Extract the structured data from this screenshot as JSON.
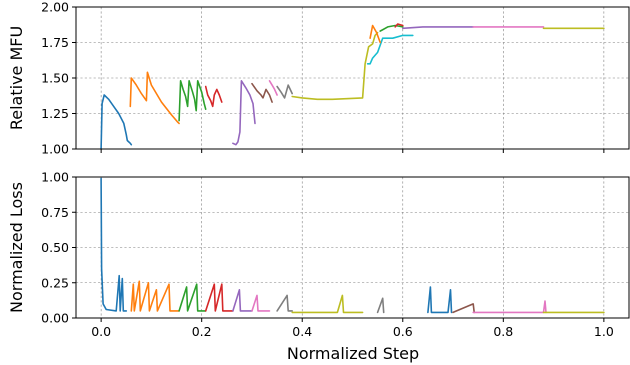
{
  "chart_data": [
    {
      "type": "line",
      "panel": "top",
      "ylabel": "Relative MFU",
      "xlabel": "",
      "xlim": [
        -0.05,
        1.05
      ],
      "ylim": [
        1.0,
        2.0
      ],
      "yticks": [
        "1.00",
        "1.25",
        "1.50",
        "1.75",
        "2.00"
      ],
      "grid": true,
      "series": [
        {
          "color": "#1f77b4",
          "points": [
            [
              0.0,
              1.0
            ],
            [
              0.002,
              1.32
            ],
            [
              0.006,
              1.38
            ],
            [
              0.015,
              1.35
            ],
            [
              0.025,
              1.3
            ],
            [
              0.035,
              1.25
            ],
            [
              0.045,
              1.18
            ],
            [
              0.05,
              1.1
            ],
            [
              0.052,
              1.06
            ],
            [
              0.058,
              1.04
            ],
            [
              0.06,
              1.03
            ]
          ]
        },
        {
          "color": "#ff7f0e",
          "points": [
            [
              0.058,
              1.3
            ],
            [
              0.06,
              1.5
            ],
            [
              0.07,
              1.45
            ],
            [
              0.08,
              1.39
            ],
            [
              0.09,
              1.34
            ],
            [
              0.092,
              1.54
            ],
            [
              0.1,
              1.45
            ],
            [
              0.12,
              1.33
            ],
            [
              0.14,
              1.24
            ],
            [
              0.152,
              1.19
            ],
            [
              0.155,
              1.18
            ]
          ]
        },
        {
          "color": "#2ca02c",
          "points": [
            [
              0.155,
              1.2
            ],
            [
              0.158,
              1.48
            ],
            [
              0.163,
              1.42
            ],
            [
              0.168,
              1.37
            ],
            [
              0.172,
              1.3
            ],
            [
              0.175,
              1.48
            ],
            [
              0.182,
              1.4
            ],
            [
              0.186,
              1.35
            ],
            [
              0.189,
              1.27
            ],
            [
              0.192,
              1.48
            ],
            [
              0.2,
              1.4
            ],
            [
              0.205,
              1.32
            ],
            [
              0.208,
              1.28
            ]
          ]
        },
        {
          "color": "#d62728",
          "points": [
            [
              0.208,
              1.44
            ],
            [
              0.212,
              1.38
            ],
            [
              0.218,
              1.34
            ],
            [
              0.222,
              1.3
            ],
            [
              0.225,
              1.38
            ],
            [
              0.23,
              1.42
            ],
            [
              0.235,
              1.38
            ],
            [
              0.24,
              1.33
            ]
          ]
        },
        {
          "color": "#9467bd",
          "points": [
            [
              0.262,
              1.04
            ],
            [
              0.268,
              1.03
            ],
            [
              0.272,
              1.05
            ],
            [
              0.276,
              1.12
            ],
            [
              0.279,
              1.48
            ],
            [
              0.288,
              1.43
            ],
            [
              0.296,
              1.38
            ],
            [
              0.302,
              1.32
            ],
            [
              0.306,
              1.18
            ]
          ]
        },
        {
          "color": "#8c564b",
          "points": [
            [
              0.3,
              1.46
            ],
            [
              0.31,
              1.41
            ],
            [
              0.318,
              1.38
            ],
            [
              0.322,
              1.36
            ],
            [
              0.328,
              1.42
            ],
            [
              0.335,
              1.38
            ],
            [
              0.34,
              1.33
            ]
          ]
        },
        {
          "color": "#e377c2",
          "points": [
            [
              0.335,
              1.48
            ],
            [
              0.34,
              1.45
            ],
            [
              0.345,
              1.42
            ],
            [
              0.35,
              1.38
            ]
          ]
        },
        {
          "color": "#7f7f7f",
          "points": [
            [
              0.35,
              1.44
            ],
            [
              0.358,
              1.4
            ],
            [
              0.365,
              1.36
            ],
            [
              0.372,
              1.45
            ],
            [
              0.38,
              1.39
            ]
          ]
        },
        {
          "color": "#bcbd22",
          "points": [
            [
              0.38,
              1.37
            ],
            [
              0.4,
              1.36
            ],
            [
              0.43,
              1.35
            ],
            [
              0.46,
              1.35
            ],
            [
              0.52,
              1.36
            ],
            [
              0.525,
              1.6
            ],
            [
              0.532,
              1.72
            ],
            [
              0.54,
              1.74
            ],
            [
              0.545,
              1.8
            ],
            [
              0.55,
              1.82
            ]
          ]
        },
        {
          "color": "#17becf",
          "points": [
            [
              0.53,
              1.6
            ],
            [
              0.535,
              1.6
            ],
            [
              0.54,
              1.64
            ],
            [
              0.55,
              1.68
            ],
            [
              0.56,
              1.78
            ],
            [
              0.58,
              1.78
            ],
            [
              0.6,
              1.8
            ],
            [
              0.62,
              1.8
            ]
          ]
        },
        {
          "color": "#ff7f0e",
          "points": [
            [
              0.535,
              1.78
            ],
            [
              0.54,
              1.87
            ],
            [
              0.548,
              1.82
            ],
            [
              0.555,
              1.75
            ]
          ]
        },
        {
          "color": "#2ca02c",
          "points": [
            [
              0.555,
              1.83
            ],
            [
              0.57,
              1.86
            ],
            [
              0.585,
              1.87
            ],
            [
              0.6,
              1.86
            ]
          ]
        },
        {
          "color": "#d62728",
          "points": [
            [
              0.585,
              1.86
            ],
            [
              0.59,
              1.88
            ],
            [
              0.6,
              1.87
            ]
          ]
        },
        {
          "color": "#9467bd",
          "points": [
            [
              0.6,
              1.85
            ],
            [
              0.64,
              1.86
            ],
            [
              0.68,
              1.86
            ],
            [
              0.73,
              1.86
            ],
            [
              0.74,
              1.86
            ]
          ]
        },
        {
          "color": "#e377c2",
          "points": [
            [
              0.74,
              1.86
            ],
            [
              0.8,
              1.86
            ],
            [
              0.86,
              1.86
            ],
            [
              0.88,
              1.86
            ]
          ]
        },
        {
          "color": "#bcbd22",
          "points": [
            [
              0.88,
              1.85
            ],
            [
              0.94,
              1.85
            ],
            [
              1.0,
              1.85
            ]
          ]
        }
      ]
    },
    {
      "type": "line",
      "panel": "bottom",
      "ylabel": "Normalized Loss",
      "xlabel": "Normalized Step",
      "xlim": [
        -0.05,
        1.05
      ],
      "ylim": [
        0.0,
        1.0
      ],
      "xticks": [
        "0.0",
        "0.2",
        "0.4",
        "0.6",
        "0.8",
        "1.0"
      ],
      "yticks": [
        "0.00",
        "0.25",
        "0.50",
        "0.75",
        "1.00"
      ],
      "grid": true,
      "series": [
        {
          "color": "#1f77b4",
          "points": [
            [
              0.0,
              0.99
            ],
            [
              0.001,
              0.35
            ],
            [
              0.004,
              0.1
            ],
            [
              0.01,
              0.06
            ],
            [
              0.03,
              0.05
            ],
            [
              0.036,
              0.3
            ],
            [
              0.038,
              0.05
            ],
            [
              0.042,
              0.28
            ],
            [
              0.044,
              0.05
            ],
            [
              0.05,
              0.05
            ]
          ]
        },
        {
          "color": "#ff7f0e",
          "points": [
            [
              0.06,
              0.05
            ],
            [
              0.064,
              0.24
            ],
            [
              0.066,
              0.05
            ],
            [
              0.076,
              0.26
            ],
            [
              0.078,
              0.05
            ],
            [
              0.094,
              0.25
            ],
            [
              0.096,
              0.05
            ],
            [
              0.11,
              0.2
            ],
            [
              0.112,
              0.05
            ],
            [
              0.135,
              0.24
            ],
            [
              0.137,
              0.05
            ],
            [
              0.155,
              0.05
            ]
          ]
        },
        {
          "color": "#2ca02c",
          "points": [
            [
              0.155,
              0.05
            ],
            [
              0.17,
              0.22
            ],
            [
              0.172,
              0.05
            ],
            [
              0.19,
              0.24
            ],
            [
              0.192,
              0.05
            ],
            [
              0.208,
              0.05
            ]
          ]
        },
        {
          "color": "#d62728",
          "points": [
            [
              0.208,
              0.05
            ],
            [
              0.225,
              0.24
            ],
            [
              0.227,
              0.05
            ],
            [
              0.24,
              0.24
            ],
            [
              0.242,
              0.05
            ],
            [
              0.262,
              0.05
            ]
          ]
        },
        {
          "color": "#9467bd",
          "points": [
            [
              0.262,
              0.05
            ],
            [
              0.275,
              0.2
            ],
            [
              0.277,
              0.05
            ],
            [
              0.3,
              0.05
            ]
          ]
        },
        {
          "color": "#e377c2",
          "points": [
            [
              0.3,
              0.05
            ],
            [
              0.31,
              0.16
            ],
            [
              0.312,
              0.05
            ],
            [
              0.335,
              0.05
            ]
          ]
        },
        {
          "color": "#7f7f7f",
          "points": [
            [
              0.35,
              0.05
            ],
            [
              0.37,
              0.16
            ],
            [
              0.372,
              0.05
            ],
            [
              0.38,
              0.05
            ]
          ]
        },
        {
          "color": "#bcbd22",
          "points": [
            [
              0.38,
              0.04
            ],
            [
              0.47,
              0.04
            ],
            [
              0.48,
              0.16
            ],
            [
              0.482,
              0.04
            ],
            [
              0.52,
              0.04
            ]
          ]
        },
        {
          "color": "#1f77b4",
          "points": [
            [
              0.65,
              0.04
            ],
            [
              0.655,
              0.22
            ],
            [
              0.657,
              0.04
            ],
            [
              0.69,
              0.04
            ],
            [
              0.695,
              0.2
            ],
            [
              0.697,
              0.04
            ]
          ]
        },
        {
          "color": "#7f7f7f",
          "points": [
            [
              0.55,
              0.04
            ],
            [
              0.56,
              0.14
            ],
            [
              0.562,
              0.04
            ]
          ]
        },
        {
          "color": "#8c564b",
          "points": [
            [
              0.7,
              0.04
            ],
            [
              0.74,
              0.1
            ],
            [
              0.742,
              0.04
            ]
          ]
        },
        {
          "color": "#e377c2",
          "points": [
            [
              0.74,
              0.04
            ],
            [
              0.8,
              0.04
            ],
            [
              0.88,
              0.04
            ],
            [
              0.883,
              0.12
            ],
            [
              0.885,
              0.04
            ]
          ]
        },
        {
          "color": "#bcbd22",
          "points": [
            [
              0.88,
              0.04
            ],
            [
              0.94,
              0.04
            ],
            [
              1.0,
              0.04
            ]
          ]
        }
      ]
    }
  ]
}
